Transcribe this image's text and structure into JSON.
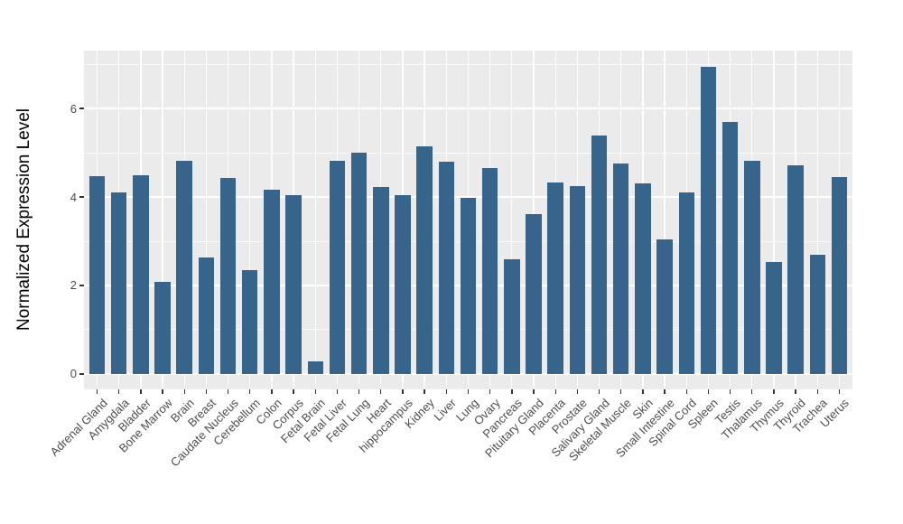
{
  "chart_data": {
    "type": "bar",
    "title": "",
    "xlabel": "",
    "ylabel": "Normalized Expression Level",
    "categories": [
      "Adrenal Gland",
      "Amygdala",
      "Bladder",
      "Bone Marrow",
      "Brain",
      "Breast",
      "Caudate Nucleus",
      "Cerebellum",
      "Colon",
      "Corpus",
      "Fetal Brain",
      "Fetal Liver",
      "Fetal Lung",
      "Heart",
      "hippocampus",
      "Kidney",
      "Liver",
      "Lung",
      "Ovary",
      "Pancreas",
      "Pituitary Gland",
      "Placenta",
      "Prostate",
      "Salivary Gland",
      "Skeletal Muscle",
      "Skin",
      "Small Intestine",
      "Spinal Cord",
      "Spleen",
      "Testis",
      "Thalamus",
      "Thymus",
      "Thyroid",
      "Trachea",
      "Uterus"
    ],
    "values": [
      4.48,
      4.1,
      4.49,
      2.08,
      4.81,
      2.63,
      4.44,
      2.35,
      4.16,
      4.05,
      0.28,
      4.81,
      5.01,
      4.22,
      4.05,
      5.14,
      4.79,
      3.98,
      4.65,
      2.6,
      3.61,
      4.33,
      4.24,
      5.38,
      4.76,
      4.31,
      3.05,
      4.11,
      6.94,
      5.69,
      4.81,
      2.54,
      4.71,
      2.7,
      4.45
    ],
    "yticks": [
      0,
      2,
      4,
      6
    ],
    "yminor": [
      1,
      3,
      5,
      7
    ],
    "ylim": [
      -0.35,
      7.31
    ],
    "grid": true,
    "legend": false,
    "colors": {
      "bar": "#36648B",
      "panel_bg": "#EBEBEB",
      "grid_major": "#FFFFFF",
      "grid_minor": "#FFFFFF",
      "tick_text": "#4D4D4D",
      "axis_title": "#000000",
      "tick_mark": "#333333",
      "page_bg": "#FFFFFF"
    }
  }
}
